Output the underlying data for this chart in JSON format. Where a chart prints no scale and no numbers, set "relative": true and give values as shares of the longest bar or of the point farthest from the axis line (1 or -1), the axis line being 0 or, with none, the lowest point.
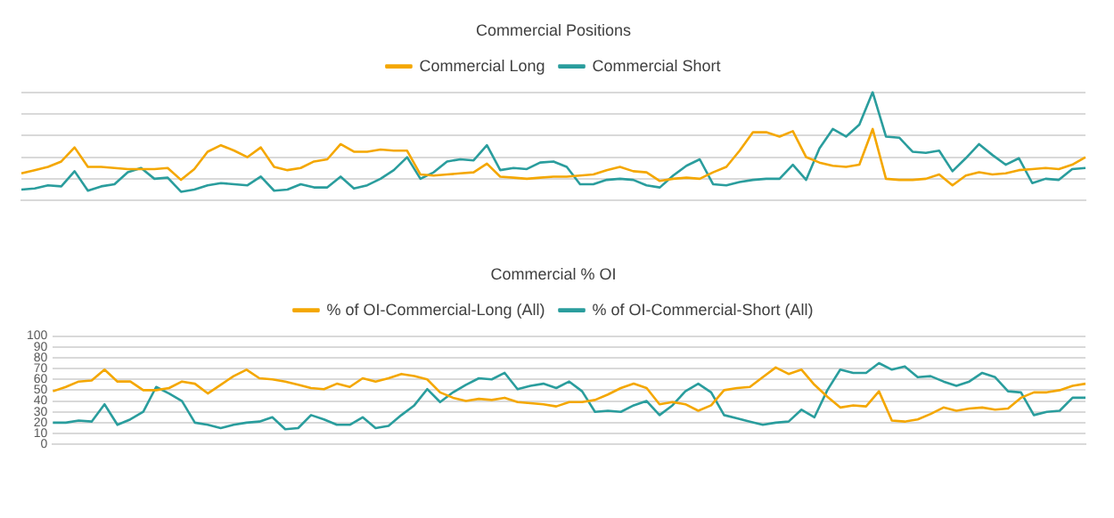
{
  "chart_data": [
    {
      "type": "line",
      "title": "Commercial Positions",
      "relative": true,
      "grid": "y",
      "legend": "top",
      "marker": "none",
      "categories": [
        null,
        null,
        null,
        null,
        null,
        null,
        null,
        null,
        null,
        null,
        null,
        null,
        null,
        null,
        null,
        null,
        null,
        null,
        null,
        null,
        null,
        null,
        null,
        null,
        null,
        null,
        null,
        null,
        null,
        null,
        null,
        null,
        null,
        null,
        null,
        null,
        null,
        null,
        null,
        null,
        null,
        null,
        null,
        null,
        null,
        null,
        null,
        null,
        null,
        null,
        null,
        null,
        null,
        null,
        null,
        null,
        null,
        null,
        null,
        null,
        null,
        null,
        null,
        null,
        null,
        null,
        null,
        null,
        null,
        null,
        null,
        null,
        null,
        null,
        null,
        null,
        null,
        null,
        null,
        null,
        null
      ],
      "series": [
        {
          "name": "Commercial Long",
          "color": "#f4a700",
          "values": [
            0.25,
            0.28,
            0.31,
            0.36,
            0.49,
            0.31,
            0.31,
            0.3,
            0.29,
            0.29,
            0.29,
            0.3,
            0.19,
            0.29,
            0.45,
            0.51,
            0.46,
            0.4,
            0.49,
            0.31,
            0.28,
            0.3,
            0.36,
            0.38,
            0.52,
            0.45,
            0.45,
            0.47,
            0.46,
            0.46,
            0.24,
            0.23,
            0.24,
            0.25,
            0.26,
            0.34,
            0.22,
            0.21,
            0.2,
            0.21,
            0.22,
            0.22,
            0.23,
            0.24,
            0.28,
            0.31,
            0.27,
            0.26,
            0.18,
            0.2,
            0.21,
            0.2,
            0.26,
            0.31,
            0.46,
            0.63,
            0.63,
            0.59,
            0.64,
            0.4,
            0.35,
            0.32,
            0.31,
            0.33,
            0.66,
            0.2,
            0.19,
            0.19,
            0.2,
            0.24,
            0.14,
            0.23,
            0.26,
            0.24,
            0.25,
            0.28,
            0.29,
            0.3,
            0.29,
            0.33,
            0.4
          ]
        },
        {
          "name": "Commercial Short",
          "color": "#2a9d9d",
          "values": [
            0.1,
            0.11,
            0.14,
            0.13,
            0.27,
            0.09,
            0.13,
            0.15,
            0.26,
            0.3,
            0.2,
            0.21,
            0.08,
            0.1,
            0.14,
            0.16,
            0.15,
            0.14,
            0.22,
            0.09,
            0.1,
            0.15,
            0.12,
            0.12,
            0.22,
            0.11,
            0.14,
            0.2,
            0.28,
            0.4,
            0.2,
            0.26,
            0.36,
            0.38,
            0.37,
            0.51,
            0.28,
            0.3,
            0.29,
            0.35,
            0.36,
            0.31,
            0.15,
            0.15,
            0.19,
            0.2,
            0.19,
            0.14,
            0.12,
            0.23,
            0.32,
            0.38,
            0.15,
            0.14,
            0.17,
            0.19,
            0.2,
            0.2,
            0.33,
            0.19,
            0.48,
            0.66,
            0.59,
            0.7,
            1,
            0.59,
            0.58,
            0.45,
            0.44,
            0.46,
            0.27,
            0.39,
            0.52,
            0.42,
            0.33,
            0.39,
            0.16,
            0.2,
            0.19,
            0.29,
            0.3
          ]
        }
      ]
    },
    {
      "type": "line",
      "title": "Commercial % OI",
      "grid": "y",
      "legend": "top",
      "marker": "none",
      "ylim": [
        0,
        100
      ],
      "yticks": [
        0,
        10,
        20,
        30,
        40,
        50,
        60,
        70,
        80,
        90,
        100
      ],
      "categories": [
        null,
        null,
        null,
        null,
        null,
        null,
        null,
        null,
        null,
        null,
        null,
        null,
        null,
        null,
        null,
        null,
        null,
        null,
        null,
        null,
        null,
        null,
        null,
        null,
        null,
        null,
        null,
        null,
        null,
        null,
        null,
        null,
        null,
        null,
        null,
        null,
        null,
        null,
        null,
        null,
        null,
        null,
        null,
        null,
        null,
        null,
        null,
        null,
        null,
        null,
        null,
        null,
        null,
        null,
        null,
        null,
        null,
        null,
        null,
        null,
        null,
        null,
        null,
        null,
        null,
        null,
        null,
        null,
        null,
        null,
        null,
        null,
        null,
        null,
        null,
        null,
        null,
        null,
        null,
        null,
        null
      ],
      "series": [
        {
          "name": "% of OI-Commercial-Long (All)",
          "color": "#f4a700",
          "values": [
            49,
            53,
            58,
            59,
            69,
            58,
            58,
            50,
            50,
            52,
            58,
            56,
            47,
            55,
            63,
            69,
            61,
            60,
            58,
            55,
            52,
            51,
            56,
            53,
            61,
            58,
            61,
            65,
            63,
            60,
            48,
            43,
            40,
            42,
            41,
            43,
            39,
            38,
            37,
            35,
            39,
            39,
            41,
            46,
            52,
            56,
            52,
            37,
            39,
            37,
            31,
            36,
            50,
            52,
            53,
            62,
            71,
            65,
            69,
            55,
            44,
            34,
            36,
            35,
            49,
            22,
            21,
            23,
            28,
            34,
            31,
            33,
            34,
            32,
            33,
            43,
            48,
            48,
            50,
            54,
            56
          ]
        },
        {
          "name": "% of OI-Commercial-Short (All)",
          "color": "#2a9d9d",
          "values": [
            20,
            20,
            22,
            21,
            37,
            18,
            23,
            30,
            53,
            47,
            40,
            20,
            18,
            15,
            18,
            20,
            21,
            25,
            14,
            15,
            27,
            23,
            18,
            18,
            25,
            15,
            17,
            27,
            36,
            51,
            39,
            48,
            55,
            61,
            60,
            66,
            51,
            54,
            56,
            52,
            58,
            49,
            30,
            31,
            30,
            36,
            40,
            27,
            36,
            49,
            56,
            48,
            27,
            24,
            21,
            18,
            20,
            21,
            32,
            25,
            50,
            69,
            66,
            66,
            75,
            69,
            72,
            62,
            63,
            58,
            54,
            58,
            66,
            62,
            49,
            48,
            27,
            30,
            31,
            43,
            43
          ]
        }
      ]
    }
  ]
}
